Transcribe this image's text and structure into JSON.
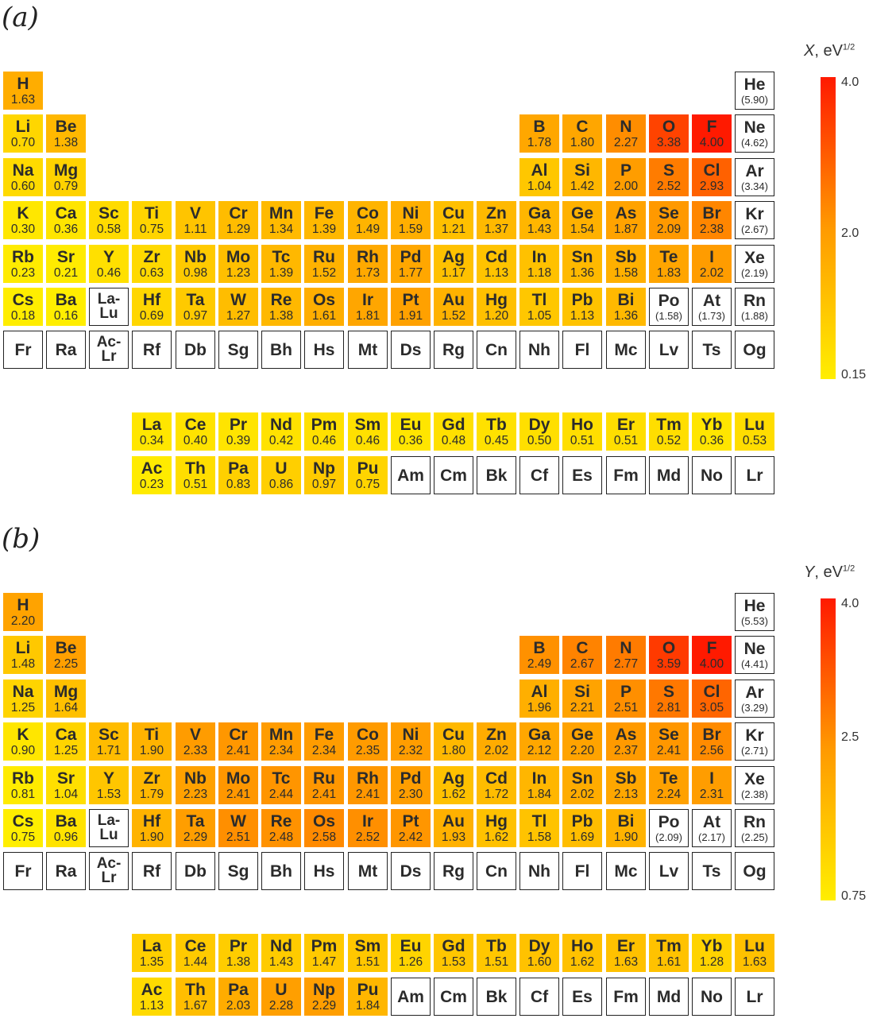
{
  "panels": [
    {
      "label": "(a)",
      "colorbar": {
        "var": "X",
        "unit": ", eV",
        "exp": "1/2",
        "min": 0.15,
        "max": 4.0,
        "ticks": [
          "4.0",
          "2.0",
          "0.15"
        ],
        "tick_values": [
          4.0,
          2.0,
          0.15
        ]
      },
      "values": {
        "H": "1.63",
        "He": "(5.90)",
        "Li": "0.70",
        "Be": "1.38",
        "B": "1.78",
        "C": "1.80",
        "N": "2.27",
        "O": "3.38",
        "F": "4.00",
        "Ne": "(4.62)",
        "Na": "0.60",
        "Mg": "0.79",
        "Al": "1.04",
        "Si": "1.42",
        "P": "2.00",
        "S": "2.52",
        "Cl": "2.93",
        "Ar": "(3.34)",
        "K": "0.30",
        "Ca": "0.36",
        "Sc": "0.58",
        "Ti": "0.75",
        "V": "1.11",
        "Cr": "1.29",
        "Mn": "1.34",
        "Fe": "1.39",
        "Co": "1.49",
        "Ni": "1.59",
        "Cu": "1.21",
        "Zn": "1.37",
        "Ga": "1.43",
        "Ge": "1.54",
        "As": "1.87",
        "Se": "2.09",
        "Br": "2.38",
        "Kr": "(2.67)",
        "Rb": "0.23",
        "Sr": "0.21",
        "Y": "0.46",
        "Zr": "0.63",
        "Nb": "0.98",
        "Mo": "1.23",
        "Tc": "1.39",
        "Ru": "1.52",
        "Rh": "1.73",
        "Pd": "1.77",
        "Ag": "1.17",
        "Cd": "1.13",
        "In": "1.18",
        "Sn": "1.36",
        "Sb": "1.58",
        "Te": "1.83",
        "I": "2.02",
        "Xe": "(2.19)",
        "Cs": "0.18",
        "Ba": "0.16",
        "Hf": "0.69",
        "Ta": "0.97",
        "W": "1.27",
        "Re": "1.38",
        "Os": "1.61",
        "Ir": "1.81",
        "Pt": "1.91",
        "Au": "1.52",
        "Hg": "1.20",
        "Tl": "1.05",
        "Pb": "1.13",
        "Bi": "1.36",
        "Po": "(1.58)",
        "At": "(1.73)",
        "Rn": "(1.88)",
        "La": "0.34",
        "Ce": "0.40",
        "Pr": "0.39",
        "Nd": "0.42",
        "Pm": "0.46",
        "Sm": "0.46",
        "Eu": "0.36",
        "Gd": "0.48",
        "Tb": "0.45",
        "Dy": "0.50",
        "Ho": "0.51",
        "Er": "0.51",
        "Tm": "0.52",
        "Yb": "0.36",
        "Lu": "0.53",
        "Ac": "0.23",
        "Th": "0.51",
        "Pa": "0.83",
        "U": "0.86",
        "Np": "0.97",
        "Pu": "0.75"
      }
    },
    {
      "label": "(b)",
      "colorbar": {
        "var": "Y",
        "unit": ", eV",
        "exp": "1/2",
        "min": 0.75,
        "max": 4.0,
        "ticks": [
          "4.0",
          "2.5",
          "0.75"
        ],
        "tick_values": [
          4.0,
          2.5,
          0.75
        ]
      },
      "values": {
        "H": "2.20",
        "He": "(5.53)",
        "Li": "1.48",
        "Be": "2.25",
        "B": "2.49",
        "C": "2.67",
        "N": "2.77",
        "O": "3.59",
        "F": "4.00",
        "Ne": "(4.41)",
        "Na": "1.25",
        "Mg": "1.64",
        "Al": "1.96",
        "Si": "2.21",
        "P": "2.51",
        "S": "2.81",
        "Cl": "3.05",
        "Ar": "(3.29)",
        "K": "0.90",
        "Ca": "1.25",
        "Sc": "1.71",
        "Ti": "1.90",
        "V": "2.33",
        "Cr": "2.41",
        "Mn": "2.34",
        "Fe": "2.34",
        "Co": "2.35",
        "Ni": "2.32",
        "Cu": "1.80",
        "Zn": "2.02",
        "Ga": "2.12",
        "Ge": "2.20",
        "As": "2.37",
        "Se": "2.41",
        "Br": "2.56",
        "Kr": "(2.71)",
        "Rb": "0.81",
        "Sr": "1.04",
        "Y": "1.53",
        "Zr": "1.79",
        "Nb": "2.23",
        "Mo": "2.41",
        "Tc": "2.44",
        "Ru": "2.41",
        "Rh": "2.41",
        "Pd": "2.30",
        "Ag": "1.62",
        "Cd": "1.72",
        "In": "1.84",
        "Sn": "2.02",
        "Sb": "2.13",
        "Te": "2.24",
        "I": "2.31",
        "Xe": "(2.38)",
        "Cs": "0.75",
        "Ba": "0.96",
        "Hf": "1.90",
        "Ta": "2.29",
        "W": "2.51",
        "Re": "2.48",
        "Os": "2.58",
        "Ir": "2.52",
        "Pt": "2.42",
        "Au": "1.93",
        "Hg": "1.62",
        "Tl": "1.58",
        "Pb": "1.69",
        "Bi": "1.90",
        "Po": "(2.09)",
        "At": "(2.17)",
        "Rn": "(2.25)",
        "La": "1.35",
        "Ce": "1.44",
        "Pr": "1.38",
        "Nd": "1.43",
        "Pm": "1.47",
        "Sm": "1.51",
        "Eu": "1.26",
        "Gd": "1.53",
        "Tb": "1.51",
        "Dy": "1.60",
        "Ho": "1.62",
        "Er": "1.63",
        "Tm": "1.61",
        "Yb": "1.28",
        "Lu": "1.63",
        "Ac": "1.13",
        "Th": "1.67",
        "Pa": "2.03",
        "U": "2.28",
        "Np": "2.29",
        "Pu": "1.84"
      }
    }
  ],
  "placeholders": {
    "La-Lu": "La-\nLu",
    "Ac-Lr": "Ac-\nLr"
  },
  "colors": {
    "low": "#ffee00",
    "mid": "#ff9a00",
    "high": "#ff1a00",
    "border": "#222222"
  }
}
